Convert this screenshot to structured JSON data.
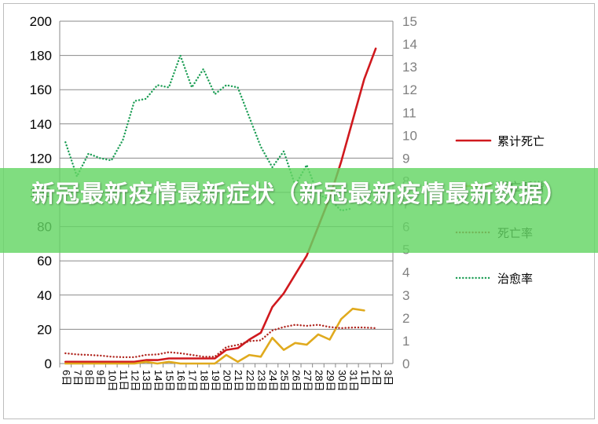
{
  "overlay": {
    "title": "新冠最新疫情最新症状（新冠最新疫情最新数据）"
  },
  "chart_data": {
    "type": "line",
    "categories": [
      "6",
      "7",
      "8",
      "9",
      "10",
      "11",
      "12",
      "13",
      "14",
      "15",
      "16",
      "17",
      "18",
      "19",
      "20",
      "21",
      "22",
      "23",
      "24",
      "25",
      "26",
      "27",
      "28",
      "29",
      "30",
      "31",
      "1",
      "2",
      "3"
    ],
    "left_axis": {
      "ylim": [
        0,
        200
      ],
      "ticks": [
        "0",
        "20",
        "40",
        "60",
        "80",
        "100",
        "120",
        "140",
        "160",
        "180",
        "200"
      ]
    },
    "right_axis": {
      "ylim": [
        0,
        15
      ],
      "ticks": [
        "0",
        "1",
        "2",
        "3",
        "4",
        "5",
        "6",
        "7",
        "8",
        "9",
        "10",
        "11",
        "12",
        "13",
        "14",
        "15"
      ]
    },
    "grid": true,
    "legend_position": "right",
    "series": [
      {
        "name": "累计死亡",
        "axis": "left",
        "style": "solid",
        "color": "#d0191e",
        "values": [
          1,
          1,
          1,
          1,
          1,
          1,
          1,
          2,
          2,
          3,
          3,
          3,
          3,
          3,
          8,
          9,
          14,
          18,
          33,
          41,
          52,
          63,
          80,
          97,
          118,
          142,
          166,
          184,
          null
        ]
      },
      {
        "name": "死亡新增",
        "axis": "left",
        "style": "solid",
        "color": "#e0aa1e",
        "values": [
          0,
          0,
          0,
          0,
          0,
          0,
          0,
          1,
          0,
          1,
          0,
          0,
          0,
          0,
          5,
          1,
          5,
          4,
          15,
          8,
          12,
          11,
          17,
          14,
          26,
          32,
          31,
          null,
          null
        ]
      },
      {
        "name": "死亡率",
        "axis": "right",
        "style": "dotted",
        "color": "#b0261f",
        "values": [
          0.45,
          0.4,
          0.38,
          0.35,
          0.3,
          0.28,
          0.28,
          0.38,
          0.4,
          0.5,
          0.45,
          0.38,
          0.3,
          0.3,
          0.72,
          0.82,
          0.98,
          1.02,
          1.45,
          1.6,
          1.7,
          1.65,
          1.7,
          1.6,
          1.55,
          1.58,
          1.58,
          1.55,
          null
        ]
      },
      {
        "name": "治愈率",
        "axis": "right",
        "style": "dotted",
        "color": "#1e9e56",
        "values": [
          9.7,
          8.2,
          9.2,
          9.0,
          8.9,
          9.8,
          11.5,
          11.6,
          12.2,
          12.1,
          13.5,
          12.1,
          12.9,
          11.8,
          12.2,
          12.1,
          10.8,
          9.5,
          8.6,
          9.3,
          7.8,
          8.7,
          7.4,
          7.2,
          6.7,
          6.8,
          null,
          null,
          null
        ]
      }
    ]
  }
}
